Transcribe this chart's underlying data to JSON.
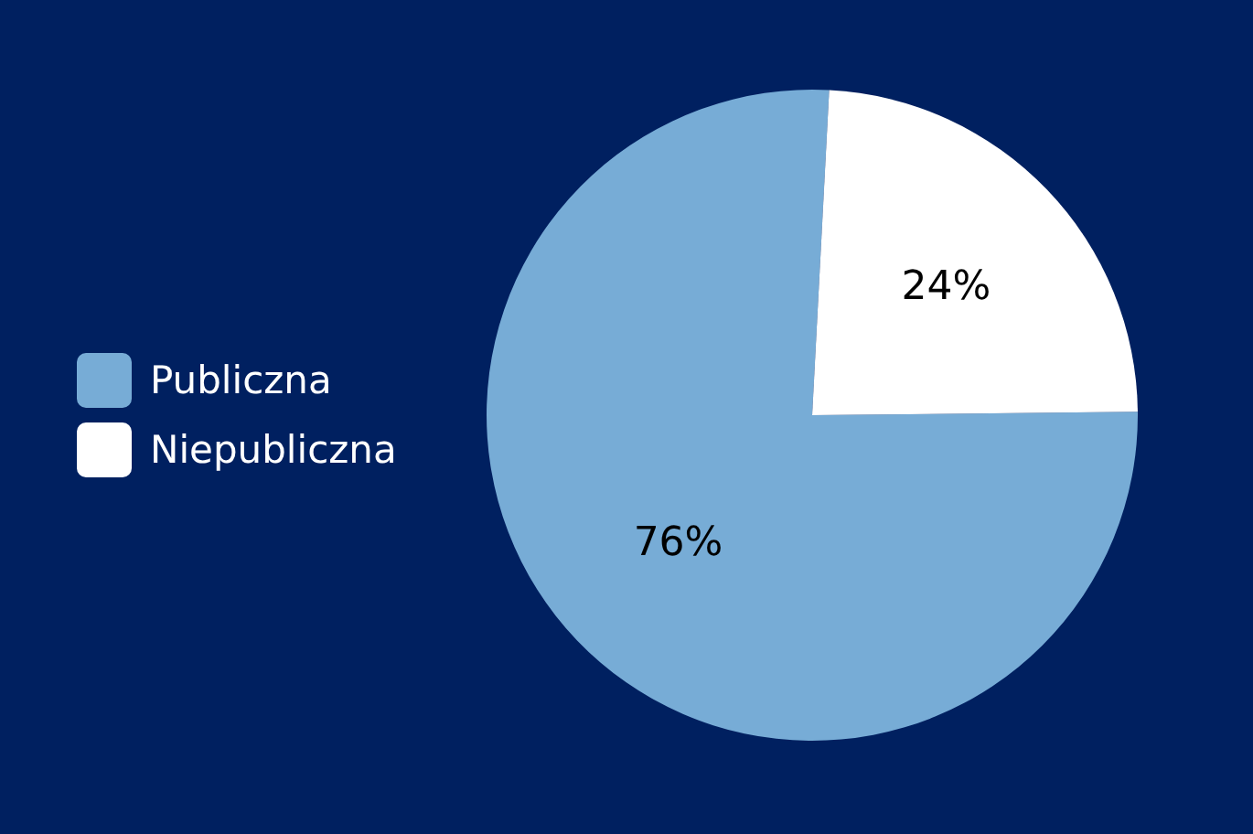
{
  "chart_data": {
    "type": "pie",
    "categories": [
      "Publiczna",
      "Niepubliczna"
    ],
    "values": [
      76,
      24
    ],
    "colors": [
      "#77acd6",
      "#ffffff"
    ],
    "value_labels": [
      "76%",
      "24%"
    ],
    "legend": "left"
  }
}
